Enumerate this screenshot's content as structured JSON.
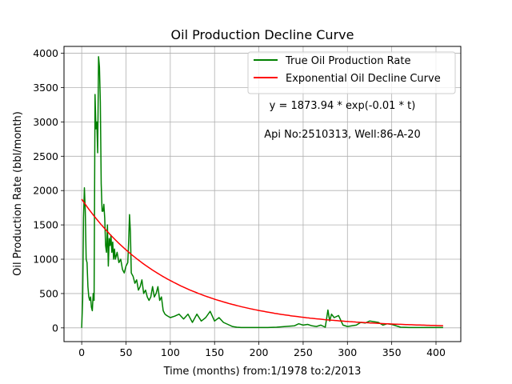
{
  "chart_data": {
    "type": "line",
    "title": "Oil Production Decline Curve",
    "xlabel": "Time (months) from:1/1978 to:2/2013",
    "ylabel": "Oil Production Rate (bbl/month)",
    "xlim": [
      -20,
      428
    ],
    "ylim": [
      -200,
      4100
    ],
    "xticks": [
      0,
      50,
      100,
      150,
      200,
      250,
      300,
      350,
      400
    ],
    "yticks": [
      0,
      500,
      1000,
      1500,
      2000,
      2500,
      3000,
      3500,
      4000
    ],
    "grid": true,
    "legend_position": "top-right",
    "annotations": [
      "y = 1873.94 * exp(-0.01 * t)",
      "Api No:2510313, Well:86-A-20"
    ],
    "series": [
      {
        "name": "True Oil Production Rate",
        "color": "#008000",
        "x": [
          0,
          1,
          2,
          3,
          4,
          5,
          6,
          7,
          8,
          9,
          10,
          11,
          12,
          13,
          14,
          15,
          16,
          17,
          18,
          19,
          20,
          21,
          22,
          23,
          24,
          25,
          26,
          27,
          28,
          29,
          30,
          31,
          32,
          33,
          34,
          35,
          36,
          37,
          38,
          39,
          40,
          42,
          44,
          46,
          48,
          50,
          52,
          53,
          54,
          55,
          56,
          58,
          60,
          62,
          64,
          66,
          68,
          70,
          72,
          74,
          76,
          78,
          80,
          82,
          84,
          86,
          88,
          90,
          92,
          94,
          96,
          100,
          105,
          110,
          115,
          120,
          125,
          130,
          135,
          140,
          145,
          150,
          155,
          160,
          165,
          170,
          175,
          180,
          190,
          200,
          210,
          220,
          230,
          240,
          245,
          250,
          255,
          260,
          265,
          270,
          275,
          278,
          280,
          282,
          285,
          290,
          295,
          300,
          305,
          310,
          315,
          320,
          325,
          330,
          335,
          340,
          345,
          350,
          360,
          370,
          380,
          390,
          400,
          408
        ],
        "values": [
          0,
          400,
          1600,
          2040,
          1700,
          1000,
          950,
          600,
          450,
          400,
          450,
          300,
          250,
          500,
          400,
          3400,
          2900,
          3000,
          2550,
          3950,
          3800,
          3300,
          2100,
          1700,
          1700,
          1800,
          1600,
          1200,
          1100,
          1500,
          900,
          1300,
          1200,
          1350,
          1100,
          1250,
          1000,
          1150,
          1000,
          1050,
          1100,
          950,
          1000,
          850,
          800,
          900,
          950,
          1250,
          1650,
          1400,
          800,
          750,
          650,
          700,
          550,
          600,
          700,
          500,
          550,
          450,
          400,
          450,
          600,
          450,
          500,
          600,
          400,
          450,
          250,
          200,
          180,
          150,
          170,
          200,
          130,
          200,
          80,
          200,
          100,
          150,
          240,
          100,
          150,
          80,
          50,
          20,
          10,
          5,
          5,
          5,
          5,
          10,
          20,
          30,
          60,
          40,
          50,
          30,
          20,
          40,
          10,
          260,
          100,
          200,
          150,
          180,
          40,
          20,
          30,
          40,
          80,
          70,
          100,
          90,
          80,
          40,
          60,
          50,
          10,
          5,
          5,
          5,
          5,
          5
        ]
      },
      {
        "name": "Exponential Oil Decline Curve",
        "color": "#ff0000",
        "function": "exponential",
        "a": 1873.94,
        "b": -0.01,
        "x_start": 0,
        "x_end": 408
      }
    ]
  }
}
